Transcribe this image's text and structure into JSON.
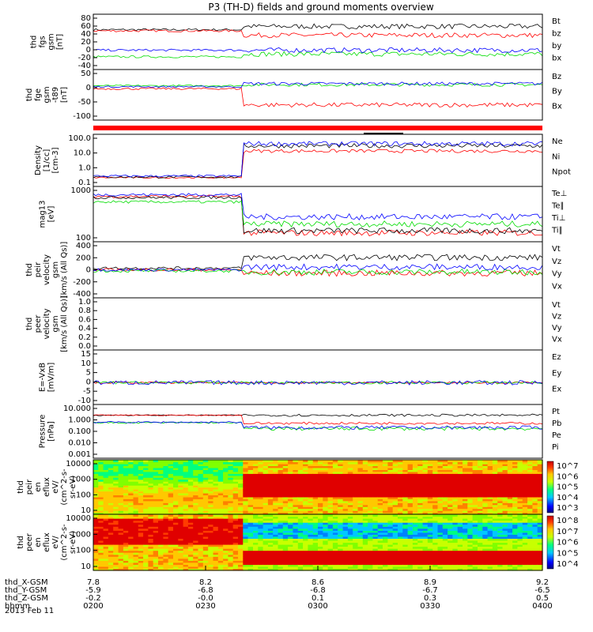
{
  "title": "P3 (TH-D) fields and ground moments overview",
  "date": "2013 Feb 11",
  "x_ticks": [
    "0200",
    "0230",
    "0300",
    "0330",
    "0400"
  ],
  "orbit_rows": [
    {
      "label": "thd_X-GSM",
      "values": [
        "7.8",
        "8.2",
        "8.6",
        "8.9",
        "9.2"
      ]
    },
    {
      "label": "thd_Y-GSM",
      "values": [
        "-5.9",
        "-6.8",
        "-6.8",
        "-6.7",
        "-6.5"
      ]
    },
    {
      "label": "thd_Z-GSM",
      "values": [
        "-0.2",
        "-0.0",
        "0.1",
        "0.3",
        "0.5"
      ]
    },
    {
      "label": "hhmm",
      "values": [
        "0200",
        "0230",
        "0300",
        "0330",
        "0400"
      ]
    }
  ],
  "colors": {
    "black": "#000000",
    "red": "#ff0000",
    "green": "#00dd00",
    "blue": "#0000ff"
  },
  "chart_data": [
    {
      "type": "line",
      "ylabel": [
        "thd",
        "fgs",
        "gsm",
        "[nT]"
      ],
      "yticks": [
        "80",
        "60",
        "40",
        "20",
        "0",
        "-20",
        "-40"
      ],
      "ylim": [
        -40,
        80
      ],
      "series": [
        {
          "name": "Bt",
          "color": "black"
        },
        {
          "name": "bz",
          "color": "red"
        },
        {
          "name": "by",
          "color": "green"
        },
        {
          "name": "bx",
          "color": "blue"
        }
      ]
    },
    {
      "type": "line",
      "ylabel": [
        "thd",
        "fge",
        "gsm",
        "-t89",
        "[nT]"
      ],
      "yticks": [
        "50",
        "0",
        "-50",
        "-100"
      ],
      "ylim": [
        -120,
        60
      ],
      "series": [
        {
          "name": "Bz",
          "color": "red"
        },
        {
          "name": "By",
          "color": "green"
        },
        {
          "name": "Bx",
          "color": "blue"
        }
      ]
    },
    {
      "type": "line",
      "ylabel": [
        "Density",
        "[1/cc]",
        "[cm-3]"
      ],
      "yticks": [
        "100.0",
        "10.0",
        "1.0",
        "0.1"
      ],
      "ylim": [
        0.1,
        100
      ],
      "log": true,
      "series": [
        {
          "name": "Ne",
          "color": "red"
        },
        {
          "name": "Ni",
          "color": "black"
        },
        {
          "name": "Npot",
          "color": "blue"
        }
      ]
    },
    {
      "type": "line",
      "ylabel": [
        "mag13",
        "[eV]"
      ],
      "yticks": [
        "1000",
        "100"
      ],
      "ylim": [
        30,
        3000
      ],
      "log": true,
      "series": [
        {
          "name": "Te⊥",
          "color": "red"
        },
        {
          "name": "Te∥",
          "color": "black"
        },
        {
          "name": "Ti⊥",
          "color": "blue"
        },
        {
          "name": "Ti∥",
          "color": "green"
        }
      ]
    },
    {
      "type": "line",
      "ylabel": [
        "thd",
        "peir",
        "velocity",
        "gsm",
        "[km/s (All Qs)]"
      ],
      "yticks": [
        "400",
        "200",
        "0",
        "-200",
        "-400"
      ],
      "ylim": [
        -400,
        400
      ],
      "series": [
        {
          "name": "Vt",
          "color": "black"
        },
        {
          "name": "Vz",
          "color": "red"
        },
        {
          "name": "Vy",
          "color": "green"
        },
        {
          "name": "Vx",
          "color": "blue"
        }
      ]
    },
    {
      "type": "line",
      "ylabel": [
        "thd",
        "peer",
        "velocity",
        "gsm",
        "[km/s (All Qs)]"
      ],
      "yticks": [
        "1.0",
        "0.8",
        "0.6",
        "0.4",
        "0.2",
        "0.0"
      ],
      "ylim": [
        0,
        1
      ],
      "series": [
        {
          "name": "Vt",
          "color": "black"
        },
        {
          "name": "Vz",
          "color": "red"
        },
        {
          "name": "Vy",
          "color": "green"
        },
        {
          "name": "Vx",
          "color": "blue"
        }
      ]
    },
    {
      "type": "line",
      "ylabel": [
        "E=-VxB",
        "[mV/m]"
      ],
      "yticks": [
        "15",
        "10",
        "5",
        "0",
        "-5",
        "-10"
      ],
      "ylim": [
        -10,
        15
      ],
      "series": [
        {
          "name": "Ez",
          "color": "red"
        },
        {
          "name": "Ey",
          "color": "green"
        },
        {
          "name": "Ex",
          "color": "blue"
        }
      ]
    },
    {
      "type": "line",
      "ylabel": [
        "Pressure",
        "[nPa]"
      ],
      "yticks": [
        "10.000",
        "1.000",
        "0.100",
        "0.010",
        "0.001"
      ],
      "ylim": [
        0.001,
        10
      ],
      "log": true,
      "series": [
        {
          "name": "Pt",
          "color": "black"
        },
        {
          "name": "Pb",
          "color": "red"
        },
        {
          "name": "Pe",
          "color": "green"
        },
        {
          "name": "Pi",
          "color": "blue"
        }
      ]
    },
    {
      "type": "heatmap",
      "ylabel": [
        "thd",
        "peir",
        "en",
        "eflux",
        "eV/",
        "(cm^2-s-",
        "sr-eV)"
      ],
      "yticks": [
        "10000",
        "1000",
        "100",
        "10"
      ],
      "ylim": [
        5,
        20000
      ],
      "log": true,
      "colorbar_ticks": [
        "10^7",
        "10^6",
        "10^5",
        "10^4",
        "10^3"
      ]
    },
    {
      "type": "heatmap",
      "ylabel": [
        "thd",
        "peer",
        "en",
        "eflux",
        "eV/",
        "(cm^2-s-",
        "sr-eV)"
      ],
      "yticks": [
        "10000",
        "1000",
        "100",
        "10"
      ],
      "ylim": [
        5,
        20000
      ],
      "log": true,
      "colorbar_ticks": [
        "10^8",
        "10^7",
        "10^6",
        "10^5",
        "10^4"
      ]
    }
  ]
}
